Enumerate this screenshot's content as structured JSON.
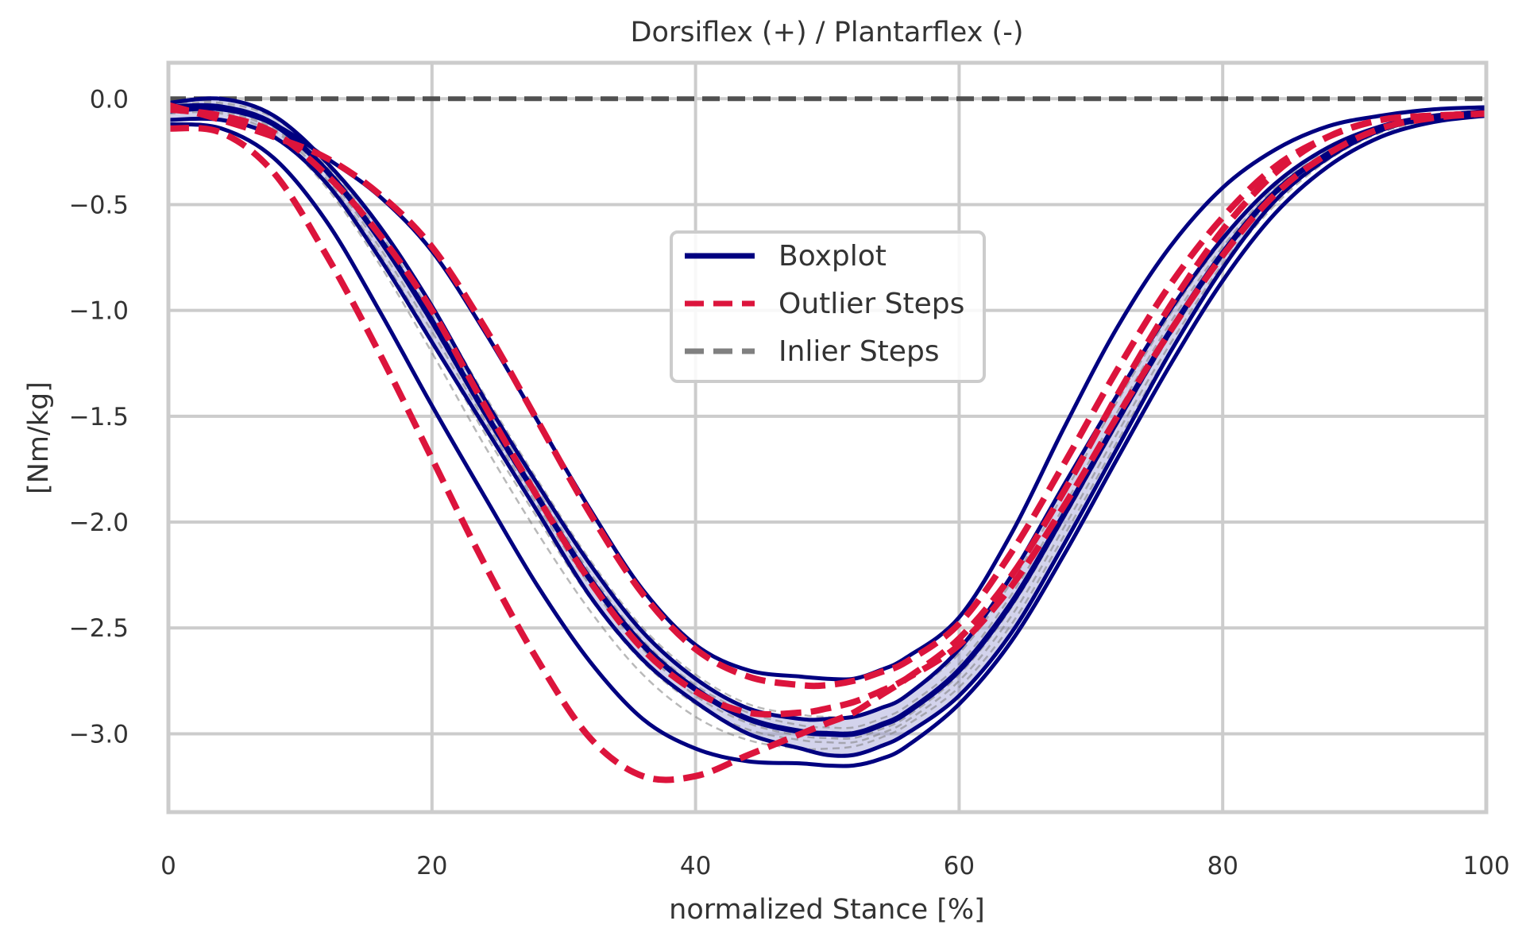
{
  "chart_data": {
    "type": "line",
    "title": "Dorsiflex (+) / Plantarflex (-)",
    "xlabel": "normalized Stance [%]",
    "ylabel": "[Nm/kg]",
    "xlim": [
      0,
      100
    ],
    "ylim": [
      -3.37,
      0.17
    ],
    "xticks": [
      0,
      20,
      40,
      60,
      80,
      100
    ],
    "yticks": [
      0.0,
      -0.5,
      -1.0,
      -1.5,
      -2.0,
      -2.5,
      -3.0
    ],
    "xtick_labels": [
      "0",
      "20",
      "40",
      "60",
      "80",
      "100"
    ],
    "ytick_labels": [
      "0.0",
      "−0.5",
      "−1.0",
      "−1.5",
      "−2.0",
      "−2.5",
      "−3.0"
    ],
    "grid": true,
    "legend_position": "center",
    "legend": [
      {
        "label": "Boxplot",
        "color": "#000080",
        "style": "solid"
      },
      {
        "label": "Outlier Steps",
        "color": "#dc143c",
        "style": "dashed"
      },
      {
        "label": "Inlier Steps",
        "color": "#808080",
        "style": "dashed"
      }
    ],
    "colors": {
      "boxplot": "#000080",
      "outlier": "#dc143c",
      "inlier": "#808080",
      "band": "#8080c8",
      "zero_line": "#505050"
    },
    "zero_line": {
      "y": 0.0
    },
    "x": [
      0,
      4,
      8,
      12,
      16,
      20,
      24,
      28,
      32,
      36,
      40,
      44,
      48,
      50,
      52,
      54,
      56,
      60,
      64,
      68,
      72,
      76,
      80,
      84,
      88,
      92,
      96,
      100
    ],
    "boxplot_series": [
      {
        "values": [
          -0.1,
          -0.1,
          -0.18,
          -0.4,
          -0.75,
          -1.15,
          -1.55,
          -1.95,
          -2.35,
          -2.65,
          -2.85,
          -3.0,
          -3.07,
          -3.1,
          -3.1,
          -3.06,
          -3.0,
          -2.82,
          -2.52,
          -2.1,
          -1.65,
          -1.2,
          -0.8,
          -0.48,
          -0.28,
          -0.15,
          -0.09,
          -0.07
        ]
      },
      {
        "values": [
          -0.02,
          0.0,
          -0.08,
          -0.3,
          -0.6,
          -0.98,
          -1.42,
          -1.82,
          -2.2,
          -2.52,
          -2.74,
          -2.88,
          -2.93,
          -2.93,
          -2.92,
          -2.88,
          -2.82,
          -2.6,
          -2.25,
          -1.82,
          -1.4,
          -1.0,
          -0.66,
          -0.4,
          -0.23,
          -0.13,
          -0.08,
          -0.06
        ]
      },
      {
        "values": [
          -0.04,
          -0.04,
          -0.12,
          -0.34,
          -0.66,
          -1.05,
          -1.48,
          -1.88,
          -2.27,
          -2.58,
          -2.79,
          -2.93,
          -2.99,
          -3.0,
          -3.0,
          -2.96,
          -2.9,
          -2.7,
          -2.38,
          -1.96,
          -1.52,
          -1.1,
          -0.73,
          -0.44,
          -0.26,
          -0.14,
          -0.09,
          -0.06
        ]
      },
      {
        "values": [
          -0.06,
          -0.05,
          -0.12,
          -0.28,
          -0.46,
          -0.72,
          -1.1,
          -1.52,
          -1.94,
          -2.32,
          -2.58,
          -2.7,
          -2.73,
          -2.74,
          -2.74,
          -2.7,
          -2.64,
          -2.45,
          -2.05,
          -1.55,
          -1.08,
          -0.7,
          -0.42,
          -0.24,
          -0.13,
          -0.08,
          -0.05,
          -0.04
        ]
      },
      {
        "values": [
          -0.12,
          -0.14,
          -0.28,
          -0.58,
          -1.0,
          -1.45,
          -1.88,
          -2.3,
          -2.66,
          -2.93,
          -3.07,
          -3.13,
          -3.14,
          -3.15,
          -3.15,
          -3.12,
          -3.06,
          -2.86,
          -2.56,
          -2.15,
          -1.7,
          -1.26,
          -0.86,
          -0.54,
          -0.32,
          -0.18,
          -0.11,
          -0.08
        ]
      }
    ],
    "outlier_series": [
      {
        "values": [
          -0.14,
          -0.16,
          -0.35,
          -0.74,
          -1.2,
          -1.7,
          -2.2,
          -2.65,
          -3.02,
          -3.2,
          -3.2,
          -3.1,
          -3.0,
          -2.95,
          -2.9,
          -2.82,
          -2.74,
          -2.55,
          -2.25,
          -1.85,
          -1.4,
          -0.98,
          -0.62,
          -0.35,
          -0.18,
          -0.1,
          -0.08,
          -0.07
        ]
      },
      {
        "values": [
          -0.03,
          -0.1,
          -0.18,
          -0.28,
          -0.45,
          -0.7,
          -1.08,
          -1.52,
          -1.96,
          -2.34,
          -2.6,
          -2.73,
          -2.77,
          -2.77,
          -2.75,
          -2.71,
          -2.66,
          -2.48,
          -2.14,
          -1.72,
          -1.28,
          -0.88,
          -0.56,
          -0.32,
          -0.18,
          -0.1,
          -0.08,
          -0.07
        ]
      },
      {
        "values": [
          -0.05,
          -0.08,
          -0.16,
          -0.36,
          -0.64,
          -1.0,
          -1.45,
          -1.88,
          -2.28,
          -2.6,
          -2.8,
          -2.9,
          -2.9,
          -2.88,
          -2.85,
          -2.8,
          -2.74,
          -2.58,
          -2.3,
          -1.92,
          -1.5,
          -1.1,
          -0.74,
          -0.45,
          -0.26,
          -0.14,
          -0.09,
          -0.07
        ]
      }
    ],
    "inlier_series": [
      {
        "values": [
          -0.05,
          -0.05,
          -0.14,
          -0.36,
          -0.7,
          -1.1,
          -1.52,
          -1.92,
          -2.3,
          -2.6,
          -2.82,
          -2.95,
          -3.01,
          -3.02,
          -3.02,
          -2.98,
          -2.92,
          -2.72,
          -2.4,
          -1.98,
          -1.54,
          -1.12,
          -0.75,
          -0.46,
          -0.27,
          -0.15,
          -0.09,
          -0.06
        ]
      },
      {
        "values": [
          -0.04,
          -0.03,
          -0.11,
          -0.32,
          -0.63,
          -1.02,
          -1.45,
          -1.85,
          -2.24,
          -2.56,
          -2.77,
          -2.9,
          -2.96,
          -2.97,
          -2.97,
          -2.93,
          -2.87,
          -2.67,
          -2.34,
          -1.92,
          -1.48,
          -1.06,
          -0.7,
          -0.42,
          -0.25,
          -0.14,
          -0.09,
          -0.06
        ]
      },
      {
        "values": [
          -0.06,
          -0.06,
          -0.15,
          -0.38,
          -0.73,
          -1.14,
          -1.58,
          -1.98,
          -2.36,
          -2.66,
          -2.86,
          -2.98,
          -3.03,
          -3.04,
          -3.04,
          -3.0,
          -2.94,
          -2.75,
          -2.44,
          -2.02,
          -1.58,
          -1.16,
          -0.78,
          -0.48,
          -0.28,
          -0.15,
          -0.09,
          -0.07
        ]
      },
      {
        "values": [
          -0.03,
          -0.02,
          -0.09,
          -0.3,
          -0.6,
          -0.98,
          -1.4,
          -1.8,
          -2.18,
          -2.5,
          -2.72,
          -2.86,
          -2.91,
          -2.92,
          -2.92,
          -2.88,
          -2.82,
          -2.62,
          -2.28,
          -1.86,
          -1.43,
          -1.02,
          -0.67,
          -0.4,
          -0.24,
          -0.13,
          -0.08,
          -0.06
        ]
      },
      {
        "values": [
          -0.07,
          -0.07,
          -0.17,
          -0.42,
          -0.78,
          -1.2,
          -1.64,
          -2.05,
          -2.42,
          -2.72,
          -2.92,
          -3.03,
          -3.07,
          -3.07,
          -3.06,
          -3.02,
          -2.96,
          -2.78,
          -2.48,
          -2.06,
          -1.62,
          -1.19,
          -0.8,
          -0.5,
          -0.29,
          -0.16,
          -0.1,
          -0.07
        ]
      },
      {
        "values": [
          -0.04,
          -0.04,
          -0.12,
          -0.34,
          -0.67,
          -1.07,
          -1.5,
          -1.9,
          -2.28,
          -2.59,
          -2.8,
          -2.93,
          -2.98,
          -2.99,
          -2.99,
          -2.95,
          -2.89,
          -2.69,
          -2.37,
          -1.95,
          -1.51,
          -1.09,
          -0.72,
          -0.44,
          -0.26,
          -0.14,
          -0.09,
          -0.06
        ]
      }
    ]
  }
}
